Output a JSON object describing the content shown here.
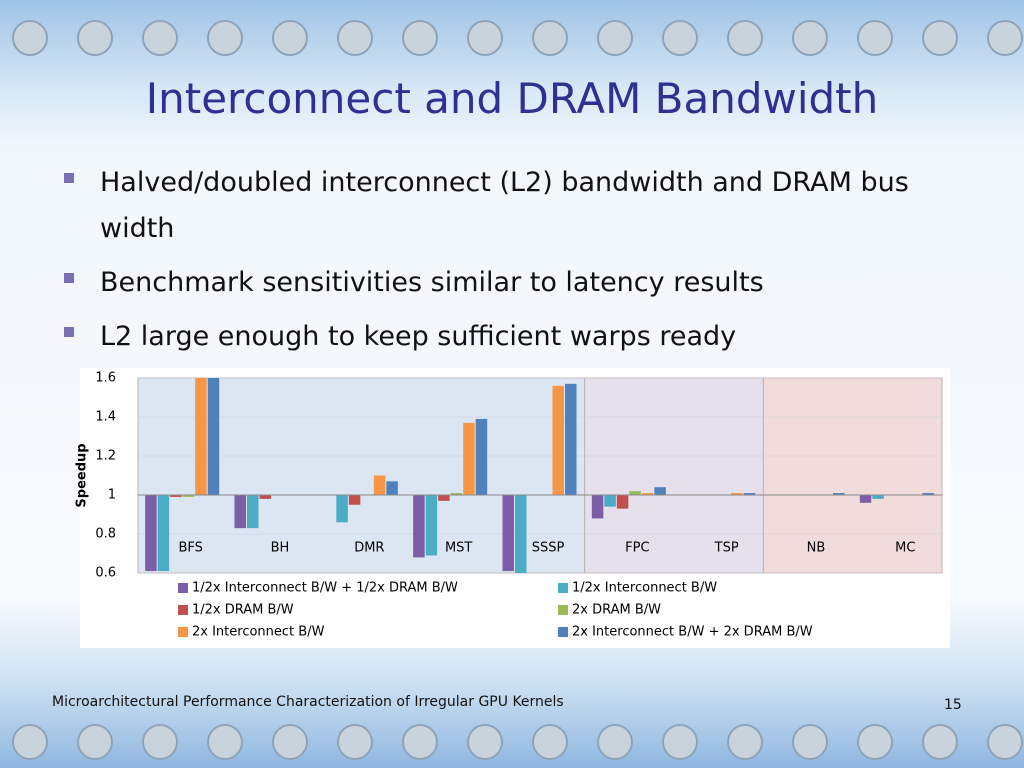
{
  "title": "Interconnect and DRAM Bandwidth",
  "bullets": [
    "Halved/doubled interconnect (L2) bandwidth and DRAM bus width",
    "Benchmark sensitivities similar to latency results",
    "L2 large enough to keep sufficient warps ready"
  ],
  "footer": "Microarchitectural Performance Characterization of Irregular GPU Kernels",
  "page_number": "15",
  "chart_data": {
    "type": "bar",
    "ylabel": "Speedup",
    "categories": [
      "BFS",
      "BH",
      "DMR",
      "MST",
      "SSSP",
      "FPC",
      "TSP",
      "NB",
      "MC"
    ],
    "ylim": [
      0.6,
      1.6
    ],
    "yticks": [
      0.6,
      0.8,
      1,
      1.2,
      1.4,
      1.6
    ],
    "grid": true,
    "series": [
      {
        "name": "1/2x Interconnect B/W + 1/2x DRAM B/W",
        "color": "#7b5ea7",
        "values": [
          0.61,
          0.83,
          1.0,
          0.68,
          0.61,
          0.88,
          1.0,
          1.0,
          0.96
        ]
      },
      {
        "name": "1/2x Interconnect B/W",
        "color": "#4bacc6",
        "values": [
          0.61,
          0.83,
          0.86,
          0.69,
          0.6,
          0.94,
          1.0,
          1.0,
          0.98
        ]
      },
      {
        "name": "1/2x DRAM B/W",
        "color": "#c0504d",
        "values": [
          0.99,
          0.98,
          0.95,
          0.97,
          1.0,
          0.93,
          1.0,
          1.0,
          1.0
        ]
      },
      {
        "name": "2x DRAM B/W",
        "color": "#9bbb59",
        "values": [
          0.99,
          1.0,
          1.0,
          1.01,
          1.0,
          1.02,
          1.0,
          1.0,
          1.0
        ]
      },
      {
        "name": "2x Interconnect B/W",
        "color": "#f79646",
        "values": [
          1.6,
          1.0,
          1.1,
          1.37,
          1.56,
          1.01,
          1.01,
          1.0,
          1.0
        ]
      },
      {
        "name": "2x Interconnect B/W + 2x DRAM B/W",
        "color": "#4f81bd",
        "values": [
          1.6,
          1.0,
          1.07,
          1.39,
          1.57,
          1.04,
          1.01,
          1.01,
          1.01
        ]
      }
    ]
  }
}
